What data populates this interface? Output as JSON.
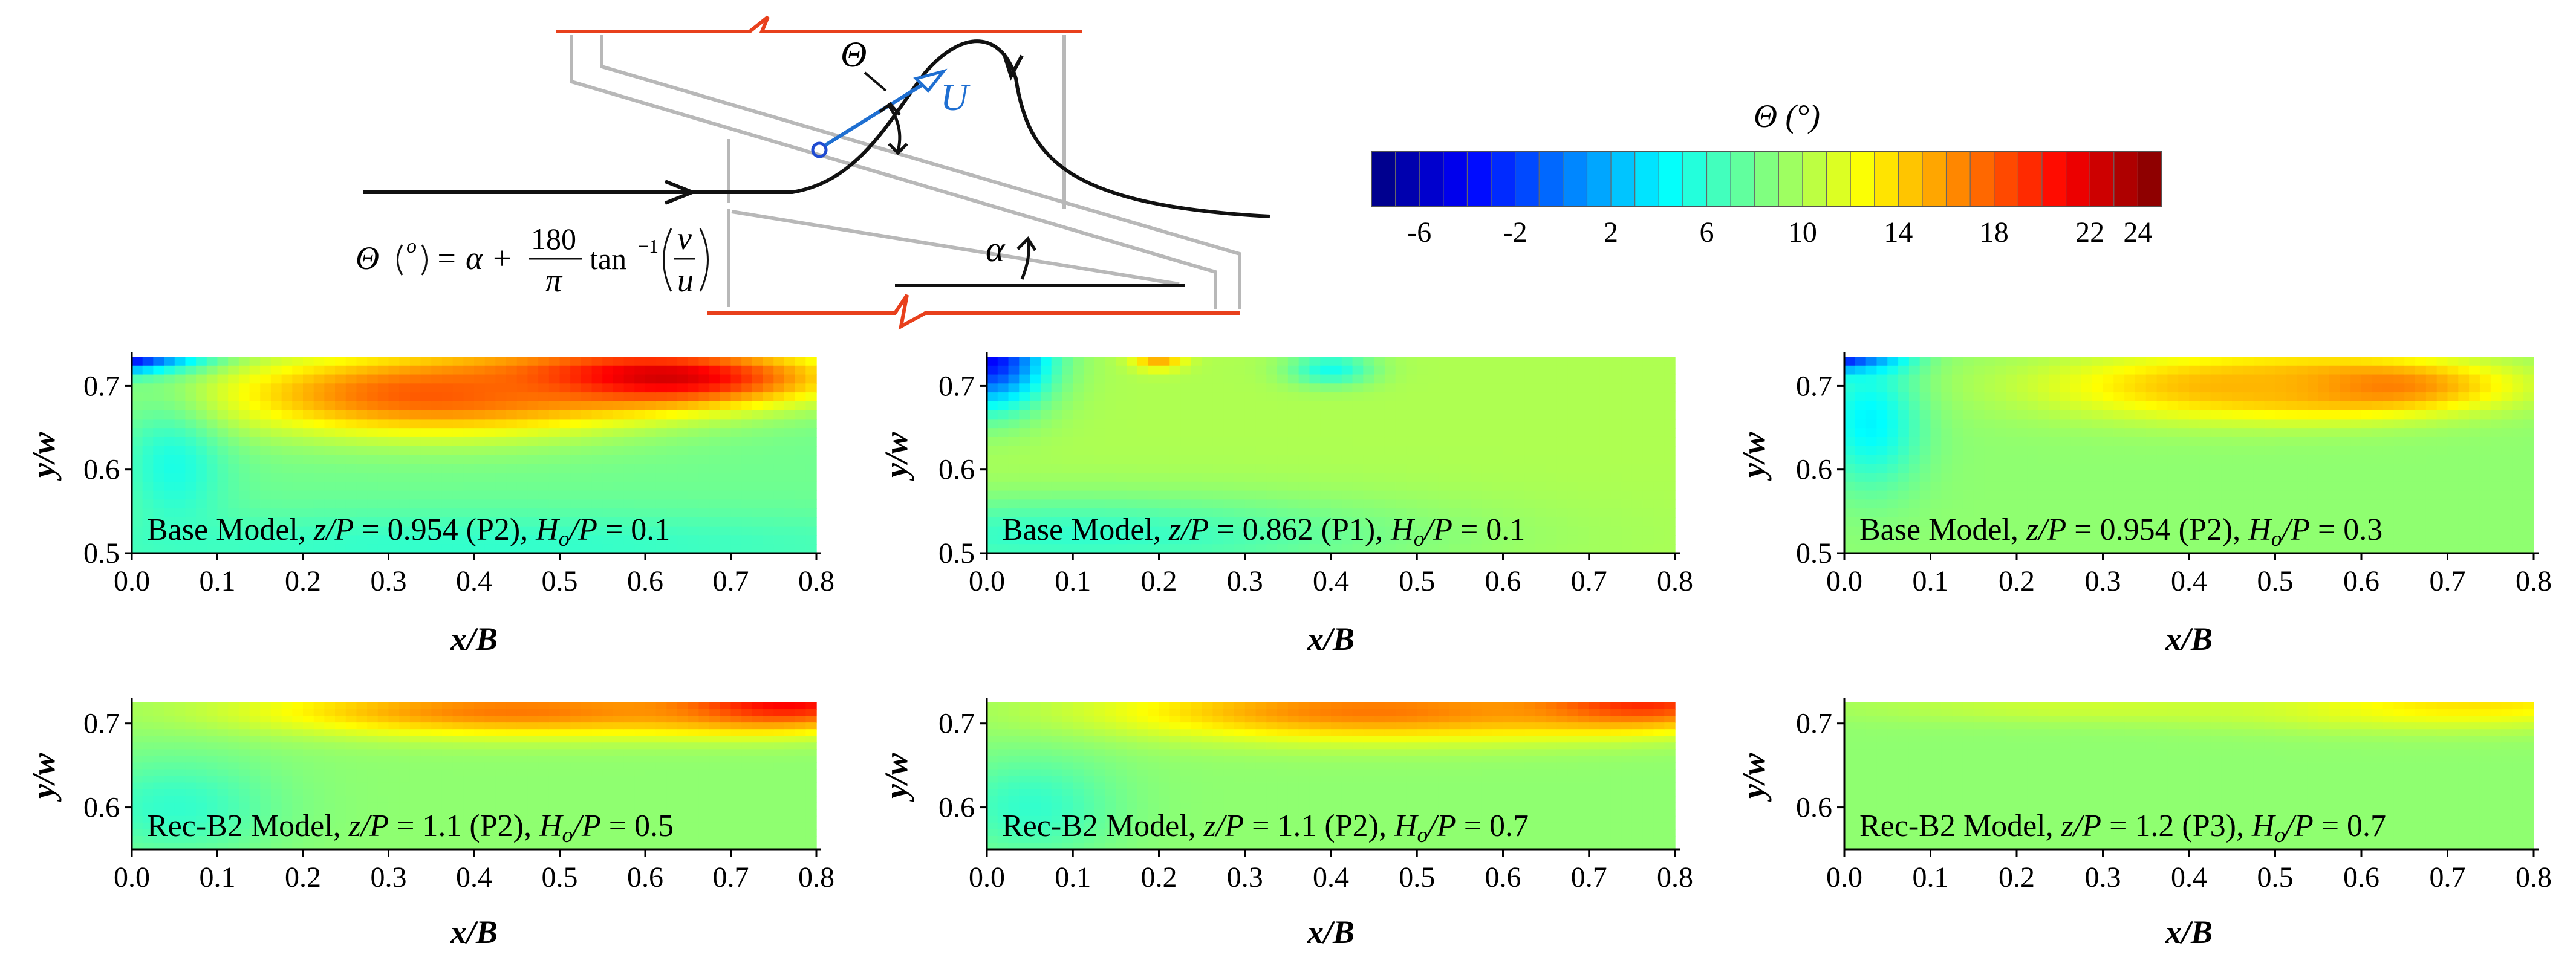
{
  "schematic": {
    "theta_symbol": "Θ",
    "u_symbol": "U",
    "alpha_symbol": "α",
    "equation": {
      "lhs": "Θ",
      "degree": "o",
      "equals_alpha_plus": "= α +",
      "numerator": "180",
      "denominator": "π",
      "func": "tan",
      "power": "−1",
      "v": "v",
      "u": "u"
    },
    "colors": {
      "wall": "#e8401c",
      "channel": "#b3b3b3",
      "streamline": "#111111",
      "velocity": "#1f6fd1"
    }
  },
  "colorbar": {
    "title": "Θ (°)",
    "min": -8,
    "max": 25,
    "ticks": [
      "-6",
      "-2",
      "2",
      "6",
      "10",
      "14",
      "18",
      "22",
      "24"
    ],
    "tick_values": [
      -6,
      -2,
      2,
      6,
      10,
      14,
      18,
      22,
      24
    ],
    "colormap": "jet"
  },
  "chart_data": [
    {
      "type": "heatmap",
      "xlabel": "x/B",
      "ylabel": "y/w",
      "xlim": [
        0.0,
        0.8
      ],
      "ylim": [
        0.5,
        0.735
      ],
      "xticks": [
        "0.0",
        "0.1",
        "0.2",
        "0.3",
        "0.4",
        "0.5",
        "0.6",
        "0.7",
        "0.8"
      ],
      "yticks": [
        "0.5",
        "0.6",
        "0.7"
      ],
      "label": {
        "model": "Base Model, ",
        "z": "z/P",
        "zval": " = 0.954 (P2), ",
        "h": "H",
        "hsub": "o",
        "hrest": "/P",
        "hval": " = 0.1"
      },
      "field": {
        "base": 8,
        "features": [
          {
            "x": 0.0,
            "y": 0.735,
            "value": -8,
            "rx": 0.08,
            "ry": 0.02
          },
          {
            "x": 0.05,
            "y": 0.62,
            "value": 5,
            "rx": 0.06,
            "ry": 0.1
          },
          {
            "x": 0.6,
            "y": 0.71,
            "value": 24,
            "rx": 0.2,
            "ry": 0.035
          },
          {
            "x": 0.35,
            "y": 0.69,
            "value": 18,
            "rx": 0.25,
            "ry": 0.05
          },
          {
            "x": 0.4,
            "y": 0.51,
            "value": 6,
            "rx": 0.6,
            "ry": 0.04
          }
        ]
      }
    },
    {
      "type": "heatmap",
      "xlabel": "x/B",
      "ylabel": "y/w",
      "xlim": [
        0.0,
        0.8
      ],
      "ylim": [
        0.5,
        0.735
      ],
      "xticks": [
        "0.0",
        "0.1",
        "0.2",
        "0.3",
        "0.4",
        "0.5",
        "0.6",
        "0.7",
        "0.8"
      ],
      "yticks": [
        "0.5",
        "0.6",
        "0.7"
      ],
      "label": {
        "model": "Base Model, ",
        "z": "z/P",
        "zval": " = 0.862 (P1), ",
        "h": "H",
        "hsub": "o",
        "hrest": "/P",
        "hval": " = 0.1"
      },
      "field": {
        "base": 10,
        "features": [
          {
            "x": 0.0,
            "y": 0.735,
            "value": -4,
            "rx": 0.07,
            "ry": 0.06
          },
          {
            "x": 0.2,
            "y": 0.735,
            "value": 16,
            "rx": 0.03,
            "ry": 0.015
          },
          {
            "x": 0.4,
            "y": 0.72,
            "value": 5,
            "rx": 0.05,
            "ry": 0.02
          },
          {
            "x": 0.1,
            "y": 0.52,
            "value": 6,
            "rx": 0.4,
            "ry": 0.05
          }
        ]
      }
    },
    {
      "type": "heatmap",
      "xlabel": "x/B",
      "ylabel": "y/w",
      "xlim": [
        0.0,
        0.8
      ],
      "ylim": [
        0.5,
        0.735
      ],
      "xticks": [
        "0.0",
        "0.1",
        "0.2",
        "0.3",
        "0.4",
        "0.5",
        "0.6",
        "0.7",
        "0.8"
      ],
      "yticks": [
        "0.5",
        "0.6",
        "0.7"
      ],
      "label": {
        "model": "Base Model, ",
        "z": "z/P",
        "zval": " = 0.954 (P2), ",
        "h": "H",
        "hsub": "o",
        "hrest": "/P",
        "hval": " = 0.3"
      },
      "field": {
        "base": 9,
        "features": [
          {
            "x": 0.0,
            "y": 0.735,
            "value": -8,
            "rx": 0.06,
            "ry": 0.02
          },
          {
            "x": 0.03,
            "y": 0.66,
            "value": 4,
            "rx": 0.06,
            "ry": 0.08
          },
          {
            "x": 0.6,
            "y": 0.7,
            "value": 19,
            "rx": 0.15,
            "ry": 0.03
          },
          {
            "x": 0.45,
            "y": 0.7,
            "value": 15,
            "rx": 0.22,
            "ry": 0.04
          }
        ]
      }
    },
    {
      "type": "heatmap",
      "xlabel": "x/B",
      "ylabel": "y/w",
      "xlim": [
        0.0,
        0.8
      ],
      "ylim": [
        0.55,
        0.725
      ],
      "xticks": [
        "0.0",
        "0.1",
        "0.2",
        "0.3",
        "0.4",
        "0.5",
        "0.6",
        "0.7",
        "0.8"
      ],
      "yticks": [
        "0.6",
        "0.7"
      ],
      "label": {
        "model": "Rec-B2 Model, ",
        "z": "z/P",
        "zval": " = 1.1 (P2), ",
        "h": "H",
        "hsub": "o",
        "hrest": "/P",
        "hval": " = 0.5"
      },
      "field": {
        "base": 9,
        "features": [
          {
            "x": 0.75,
            "y": 0.725,
            "value": 23,
            "rx": 0.15,
            "ry": 0.03
          },
          {
            "x": 0.45,
            "y": 0.715,
            "value": 17,
            "rx": 0.3,
            "ry": 0.03
          },
          {
            "x": 0.05,
            "y": 0.6,
            "value": 6,
            "rx": 0.12,
            "ry": 0.06
          }
        ]
      }
    },
    {
      "type": "heatmap",
      "xlabel": "x/B",
      "ylabel": "y/w",
      "xlim": [
        0.0,
        0.8
      ],
      "ylim": [
        0.55,
        0.725
      ],
      "xticks": [
        "0.0",
        "0.1",
        "0.2",
        "0.3",
        "0.4",
        "0.5",
        "0.6",
        "0.7",
        "0.8"
      ],
      "yticks": [
        "0.6",
        "0.7"
      ],
      "label": {
        "model": "Rec-B2 Model, ",
        "z": "z/P",
        "zval": " = 1.1 (P2), ",
        "h": "H",
        "hsub": "o",
        "hrest": "/P",
        "hval": " = 0.7"
      },
      "field": {
        "base": 9,
        "features": [
          {
            "x": 0.75,
            "y": 0.725,
            "value": 21,
            "rx": 0.15,
            "ry": 0.03
          },
          {
            "x": 0.45,
            "y": 0.715,
            "value": 17,
            "rx": 0.3,
            "ry": 0.035
          },
          {
            "x": 0.05,
            "y": 0.6,
            "value": 6,
            "rx": 0.1,
            "ry": 0.06
          }
        ]
      }
    },
    {
      "type": "heatmap",
      "xlabel": "x/B",
      "ylabel": "y/w",
      "xlim": [
        0.0,
        0.8
      ],
      "ylim": [
        0.55,
        0.725
      ],
      "xticks": [
        "0.0",
        "0.1",
        "0.2",
        "0.3",
        "0.4",
        "0.5",
        "0.6",
        "0.7",
        "0.8"
      ],
      "yticks": [
        "0.6",
        "0.7"
      ],
      "label": {
        "model": "Rec-B2 Model, ",
        "z": "z/P",
        "zval": " = 1.2 (P3), ",
        "h": "H",
        "hsub": "o",
        "hrest": "/P",
        "hval": " = 0.7"
      },
      "field": {
        "base": 9,
        "features": [
          {
            "x": 0.7,
            "y": 0.725,
            "value": 14,
            "rx": 0.25,
            "ry": 0.03
          },
          {
            "x": 0.3,
            "y": 0.72,
            "value": 11,
            "rx": 0.3,
            "ry": 0.02
          }
        ]
      }
    }
  ]
}
